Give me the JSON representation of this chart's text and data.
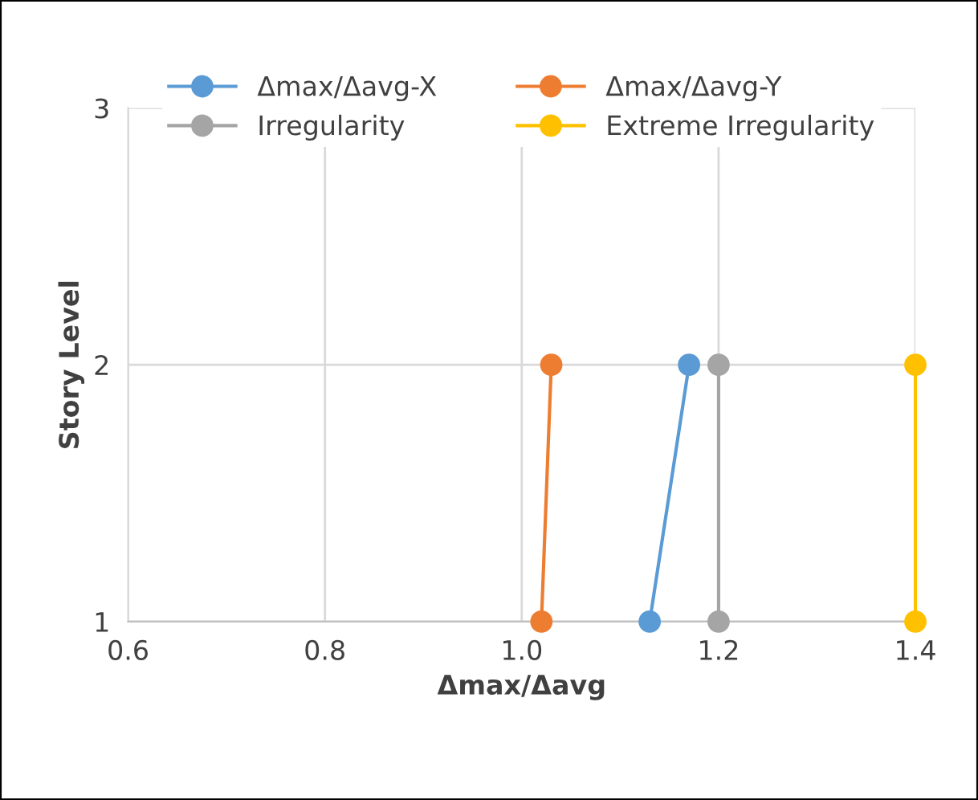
{
  "chart_data": {
    "type": "line",
    "xlabel": "Δmax/Δavg",
    "ylabel": "Story Level",
    "xlim": [
      0.6,
      1.4
    ],
    "xticks": [
      0.6,
      0.8,
      {
        "value": 1.0,
        "label": "1.0"
      },
      1.2,
      1.4
    ],
    "ylim": [
      1,
      3
    ],
    "yticks": [
      1,
      2,
      3
    ],
    "grid": true,
    "legend": "top",
    "marker": "circle",
    "line_style": "solid",
    "series": [
      {
        "name": "Δmax/Δavg-X",
        "color": "#5b9bd5",
        "x": [
          1.13,
          1.17
        ],
        "values": [
          1,
          2
        ]
      },
      {
        "name": "Δmax/Δavg-Y",
        "color": "#ed7d31",
        "x": [
          1.02,
          1.03
        ],
        "values": [
          1,
          2
        ]
      },
      {
        "name": "Irregularity",
        "color": "#a5a5a5",
        "x": [
          1.2,
          1.2
        ],
        "values": [
          1,
          2
        ]
      },
      {
        "name": "Extreme Irregularity",
        "color": "#ffc000",
        "x": [
          1.4,
          1.4
        ],
        "values": [
          1,
          2
        ]
      }
    ]
  }
}
